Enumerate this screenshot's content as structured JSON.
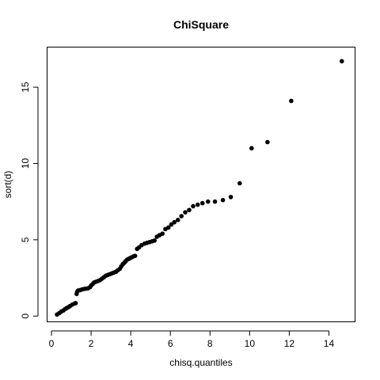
{
  "chart_data": {
    "type": "scatter",
    "title": "ChiSquare",
    "xlabel": "chisq.quantiles",
    "ylabel": "sort(d)",
    "xlim": [
      -0.2,
      15.3
    ],
    "ylim": [
      -0.35,
      17.6
    ],
    "x_ticks": [
      0,
      2,
      4,
      6,
      8,
      10,
      12,
      14
    ],
    "y_ticks": [
      0,
      5,
      10,
      15
    ],
    "grid": false,
    "legend": "none",
    "point_color": "#000000",
    "series": [
      {
        "points": [
          [
            0.28,
            0.1
          ],
          [
            0.4,
            0.2
          ],
          [
            0.5,
            0.3
          ],
          [
            0.6,
            0.37
          ],
          [
            0.68,
            0.45
          ],
          [
            0.76,
            0.52
          ],
          [
            0.85,
            0.58
          ],
          [
            0.93,
            0.65
          ],
          [
            1.05,
            0.75
          ],
          [
            1.18,
            0.83
          ],
          [
            1.22,
            0.85
          ],
          [
            1.27,
            1.45
          ],
          [
            1.3,
            1.6
          ],
          [
            1.35,
            1.68
          ],
          [
            1.45,
            1.7
          ],
          [
            1.55,
            1.75
          ],
          [
            1.65,
            1.78
          ],
          [
            1.75,
            1.8
          ],
          [
            1.85,
            1.82
          ],
          [
            1.95,
            1.9
          ],
          [
            2.0,
            2.0
          ],
          [
            2.08,
            2.1
          ],
          [
            2.15,
            2.2
          ],
          [
            2.25,
            2.25
          ],
          [
            2.35,
            2.3
          ],
          [
            2.45,
            2.35
          ],
          [
            2.55,
            2.45
          ],
          [
            2.65,
            2.55
          ],
          [
            2.75,
            2.65
          ],
          [
            2.85,
            2.7
          ],
          [
            2.95,
            2.75
          ],
          [
            3.05,
            2.8
          ],
          [
            3.15,
            2.85
          ],
          [
            3.25,
            2.9
          ],
          [
            3.35,
            3.0
          ],
          [
            3.45,
            3.1
          ],
          [
            3.52,
            3.25
          ],
          [
            3.6,
            3.4
          ],
          [
            3.68,
            3.5
          ],
          [
            3.75,
            3.6
          ],
          [
            3.82,
            3.7
          ],
          [
            3.9,
            3.75
          ],
          [
            3.97,
            3.8
          ],
          [
            4.05,
            3.85
          ],
          [
            4.12,
            3.9
          ],
          [
            4.22,
            3.95
          ],
          [
            4.32,
            4.4
          ],
          [
            4.42,
            4.5
          ],
          [
            4.55,
            4.65
          ],
          [
            4.7,
            4.75
          ],
          [
            4.82,
            4.8
          ],
          [
            4.95,
            4.85
          ],
          [
            5.08,
            4.9
          ],
          [
            5.2,
            4.95
          ],
          [
            5.32,
            5.2
          ],
          [
            5.45,
            5.3
          ],
          [
            5.6,
            5.4
          ],
          [
            5.75,
            5.7
          ],
          [
            5.9,
            5.8
          ],
          [
            6.05,
            6.0
          ],
          [
            6.2,
            6.15
          ],
          [
            6.38,
            6.3
          ],
          [
            6.56,
            6.55
          ],
          [
            6.75,
            6.8
          ],
          [
            6.95,
            6.95
          ],
          [
            7.15,
            7.2
          ],
          [
            7.38,
            7.3
          ],
          [
            7.62,
            7.4
          ],
          [
            7.9,
            7.5
          ],
          [
            8.25,
            7.5
          ],
          [
            8.65,
            7.6
          ],
          [
            9.05,
            7.8
          ],
          [
            9.5,
            8.7
          ],
          [
            10.1,
            11.0
          ],
          [
            10.9,
            11.4
          ],
          [
            12.1,
            14.1
          ],
          [
            14.65,
            16.7
          ]
        ]
      }
    ]
  }
}
